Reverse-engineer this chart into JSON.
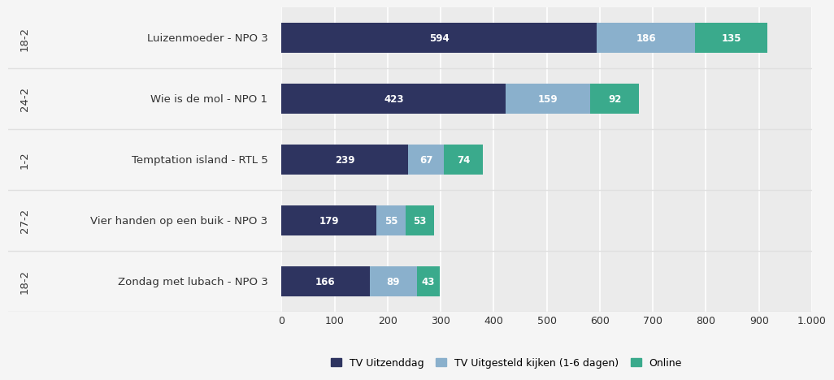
{
  "programs": [
    "Luizenmoeder - NPO 3",
    "Wie is de mol - NPO 1",
    "Temptation island - RTL 5",
    "Vier handen op een buik - NPO 3",
    "Zondag met lubach - NPO 3"
  ],
  "dates": [
    "18-2",
    "24-2",
    "1-2",
    "27-2",
    "18-2"
  ],
  "tv_uitzenddag": [
    594,
    423,
    239,
    179,
    166
  ],
  "tv_uitgesteld": [
    186,
    159,
    67,
    55,
    89
  ],
  "online": [
    135,
    92,
    74,
    53,
    43
  ],
  "color_tv": "#2e3460",
  "color_uitgesteld": "#8ab0cc",
  "color_online": "#3aaa8c",
  "xlim": [
    0,
    1000
  ],
  "xticks": [
    0,
    100,
    200,
    300,
    400,
    500,
    600,
    700,
    800,
    900,
    1000
  ],
  "xtick_labels": [
    "0",
    "100",
    "200",
    "300",
    "400",
    "500",
    "600",
    "700",
    "800",
    "900",
    "1.000"
  ],
  "legend_labels": [
    "TV Uitzenddag",
    "TV Uitgesteld kijken (1-6 dagen)",
    "Online"
  ],
  "bar_height": 0.5,
  "label_panel_bg": "#f5f5f5",
  "chart_bg": "#ebebeb",
  "separator_color": "#e0e0e0",
  "grid_color": "#ffffff",
  "font_color": "#333333",
  "label_fontsize": 9.5,
  "bar_label_fontsize": 8.5
}
